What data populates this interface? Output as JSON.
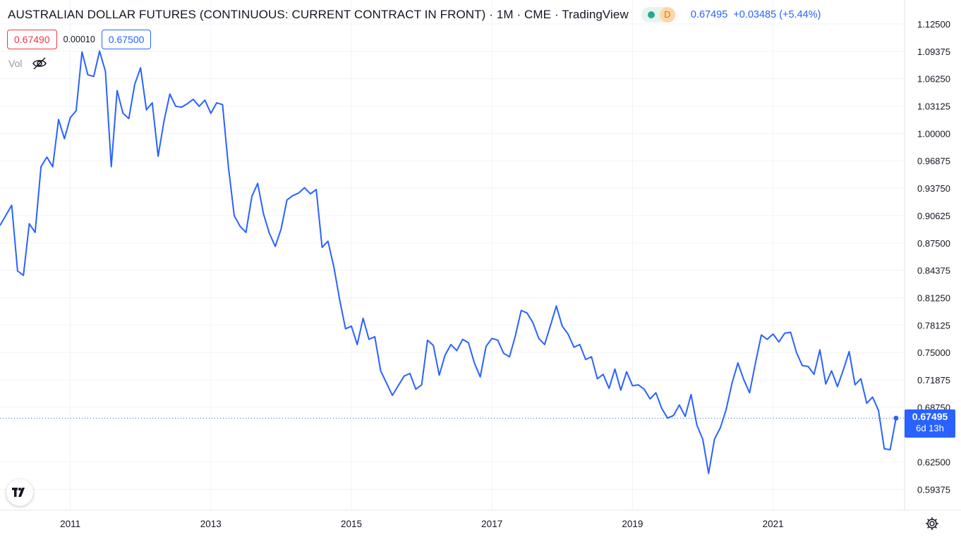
{
  "header": {
    "title": "AUSTRALIAN DOLLAR FUTURES (CONTINUOUS: CURRENT CONTRACT IN FRONT) · 1M · CME · TradingView",
    "delay_badge": "D",
    "last_price": "0.67495",
    "change": "+0.03485 (+5.44%)",
    "status_color": "#22ab94"
  },
  "quotes": {
    "bid": "0.67490",
    "spread": "0.00010",
    "ask": "0.67500"
  },
  "volume": {
    "label": "Vol",
    "icon": "eye-crossed-icon"
  },
  "last_label": {
    "price": "0.67495",
    "countdown": "6d 13h"
  },
  "icons": {
    "logo": "tradingview-logo-icon",
    "settings": "gear-icon"
  },
  "chart_data": {
    "type": "line",
    "title": "AUSTRALIAN DOLLAR FUTURES (CONTINUOUS: CURRENT CONTRACT IN FRONT) · 1M · CME · TradingView",
    "xlabel": "",
    "ylabel": "",
    "line_color": "#2962ff",
    "grid": true,
    "x_tick_labels": [
      "2011",
      "2013",
      "2015",
      "2017",
      "2019",
      "2021"
    ],
    "x_tick_dates": [
      "2011-01",
      "2013-01",
      "2015-01",
      "2017-01",
      "2019-01",
      "2021-01"
    ],
    "y_tick_labels": [
      "1.12500",
      "1.09375",
      "1.06250",
      "1.03125",
      "1.00000",
      "0.96875",
      "0.93750",
      "0.90625",
      "0.87500",
      "0.84375",
      "0.81250",
      "0.78125",
      "0.75000",
      "0.71875",
      "0.68750",
      "0.62500",
      "0.59375"
    ],
    "ylim": [
      0.59,
      1.13
    ],
    "xlim": [
      "2010-01",
      "2022-10"
    ],
    "last_value": 0.67495,
    "x": [
      "2010-01",
      "2010-03",
      "2010-04",
      "2010-05",
      "2010-06",
      "2010-07",
      "2010-08",
      "2010-09",
      "2010-10",
      "2010-11",
      "2010-12",
      "2011-01",
      "2011-02",
      "2011-03",
      "2011-04",
      "2011-05",
      "2011-06",
      "2011-07",
      "2011-08",
      "2011-09",
      "2011-10",
      "2011-11",
      "2011-12",
      "2012-01",
      "2012-02",
      "2012-03",
      "2012-04",
      "2012-05",
      "2012-06",
      "2012-07",
      "2012-08",
      "2012-09",
      "2012-10",
      "2012-11",
      "2012-12",
      "2013-01",
      "2013-02",
      "2013-03",
      "2013-04",
      "2013-05",
      "2013-06",
      "2013-07",
      "2013-08",
      "2013-09",
      "2013-10",
      "2013-11",
      "2013-12",
      "2014-01",
      "2014-02",
      "2014-03",
      "2014-04",
      "2014-05",
      "2014-06",
      "2014-07",
      "2014-08",
      "2014-09",
      "2014-10",
      "2014-11",
      "2014-12",
      "2015-01",
      "2015-02",
      "2015-03",
      "2015-04",
      "2015-05",
      "2015-06",
      "2015-07",
      "2015-08",
      "2015-09",
      "2015-10",
      "2015-11",
      "2015-12",
      "2016-01",
      "2016-02",
      "2016-03",
      "2016-04",
      "2016-05",
      "2016-06",
      "2016-07",
      "2016-08",
      "2016-09",
      "2016-10",
      "2016-11",
      "2016-12",
      "2017-01",
      "2017-02",
      "2017-03",
      "2017-04",
      "2017-05",
      "2017-06",
      "2017-07",
      "2017-08",
      "2017-09",
      "2017-10",
      "2017-11",
      "2017-12",
      "2018-01",
      "2018-02",
      "2018-03",
      "2018-04",
      "2018-05",
      "2018-06",
      "2018-07",
      "2018-08",
      "2018-09",
      "2018-10",
      "2018-11",
      "2018-12",
      "2019-01",
      "2019-02",
      "2019-03",
      "2019-04",
      "2019-05",
      "2019-06",
      "2019-07",
      "2019-08",
      "2019-09",
      "2019-10",
      "2019-11",
      "2019-12",
      "2020-01",
      "2020-02",
      "2020-03",
      "2020-04",
      "2020-05",
      "2020-06",
      "2020-07",
      "2020-08",
      "2020-09",
      "2020-10",
      "2020-11",
      "2020-12",
      "2021-01",
      "2021-02",
      "2021-03",
      "2021-04",
      "2021-05",
      "2021-06",
      "2021-07",
      "2021-08",
      "2021-09",
      "2021-10",
      "2021-11",
      "2021-12",
      "2022-01",
      "2022-02",
      "2022-03",
      "2022-04",
      "2022-05",
      "2022-06",
      "2022-07",
      "2022-08",
      "2022-09",
      "2022-10"
    ],
    "values": [
      0.895,
      0.918,
      0.843,
      0.838,
      0.897,
      0.887,
      0.962,
      0.973,
      0.962,
      1.016,
      0.994,
      1.018,
      1.026,
      1.093,
      1.067,
      1.065,
      1.094,
      1.071,
      0.962,
      1.049,
      1.023,
      1.017,
      1.056,
      1.075,
      1.027,
      1.035,
      0.974,
      1.014,
      1.045,
      1.031,
      1.03,
      1.034,
      1.039,
      1.031,
      1.038,
      1.023,
      1.035,
      1.033,
      0.962,
      0.906,
      0.894,
      0.887,
      0.928,
      0.943,
      0.908,
      0.886,
      0.871,
      0.891,
      0.924,
      0.929,
      0.932,
      0.938,
      0.931,
      0.936,
      0.87,
      0.877,
      0.848,
      0.81,
      0.777,
      0.78,
      0.759,
      0.789,
      0.765,
      0.768,
      0.729,
      0.715,
      0.701,
      0.712,
      0.723,
      0.726,
      0.708,
      0.713,
      0.764,
      0.758,
      0.724,
      0.747,
      0.759,
      0.752,
      0.765,
      0.761,
      0.738,
      0.722,
      0.757,
      0.766,
      0.764,
      0.749,
      0.745,
      0.769,
      0.798,
      0.795,
      0.784,
      0.766,
      0.759,
      0.781,
      0.803,
      0.78,
      0.771,
      0.756,
      0.759,
      0.742,
      0.745,
      0.72,
      0.725,
      0.709,
      0.731,
      0.707,
      0.728,
      0.712,
      0.713,
      0.708,
      0.697,
      0.704,
      0.686,
      0.675,
      0.678,
      0.69,
      0.677,
      0.702,
      0.667,
      0.651,
      0.612,
      0.651,
      0.664,
      0.685,
      0.715,
      0.738,
      0.719,
      0.704,
      0.738,
      0.77,
      0.765,
      0.771,
      0.762,
      0.772,
      0.773,
      0.75,
      0.735,
      0.734,
      0.725,
      0.753,
      0.714,
      0.729,
      0.711,
      0.73,
      0.751,
      0.713,
      0.72,
      0.692,
      0.699,
      0.684,
      0.64,
      0.639,
      0.67495
    ]
  }
}
